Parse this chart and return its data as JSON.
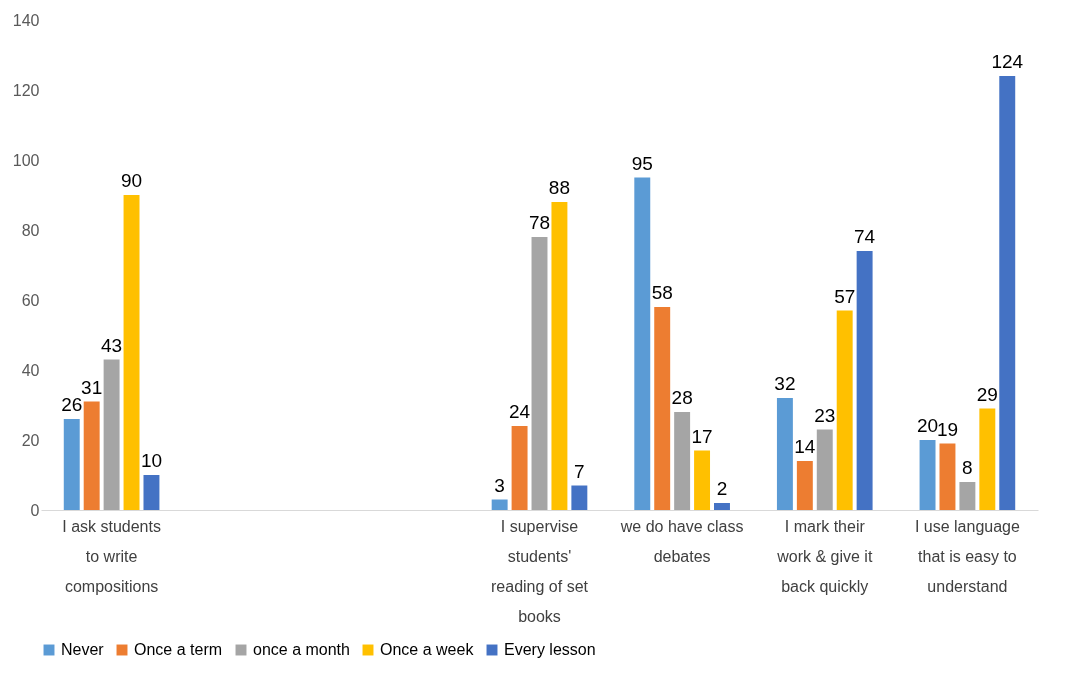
{
  "chart_data": {
    "type": "bar",
    "categories": [
      "I ask students to write compositions",
      null,
      null,
      "I supervise students' reading of set books",
      "we do have class debates",
      "I mark their work & give it back quickly",
      "I use language that is easy to understand"
    ],
    "series": [
      {
        "name": "Never",
        "color": "#5b9bd5",
        "values": [
          26,
          null,
          null,
          3,
          95,
          32,
          20
        ]
      },
      {
        "name": "Once a term",
        "color": "#ed7d31",
        "values": [
          31,
          null,
          null,
          24,
          58,
          14,
          19
        ]
      },
      {
        "name": "once a month",
        "color": "#a5a5a5",
        "values": [
          43,
          null,
          null,
          78,
          28,
          23,
          8
        ]
      },
      {
        "name": "Once a week",
        "color": "#ffc000",
        "values": [
          90,
          null,
          null,
          88,
          17,
          57,
          29
        ]
      },
      {
        "name": "Every lesson",
        "color": "#4472c4",
        "values": [
          10,
          null,
          null,
          7,
          2,
          74,
          124
        ]
      }
    ],
    "ylim": [
      0,
      140
    ],
    "yticks": [
      0,
      20,
      40,
      60,
      80,
      100,
      120,
      140
    ],
    "grid": false,
    "legend": "bottom",
    "data_labels": true
  }
}
